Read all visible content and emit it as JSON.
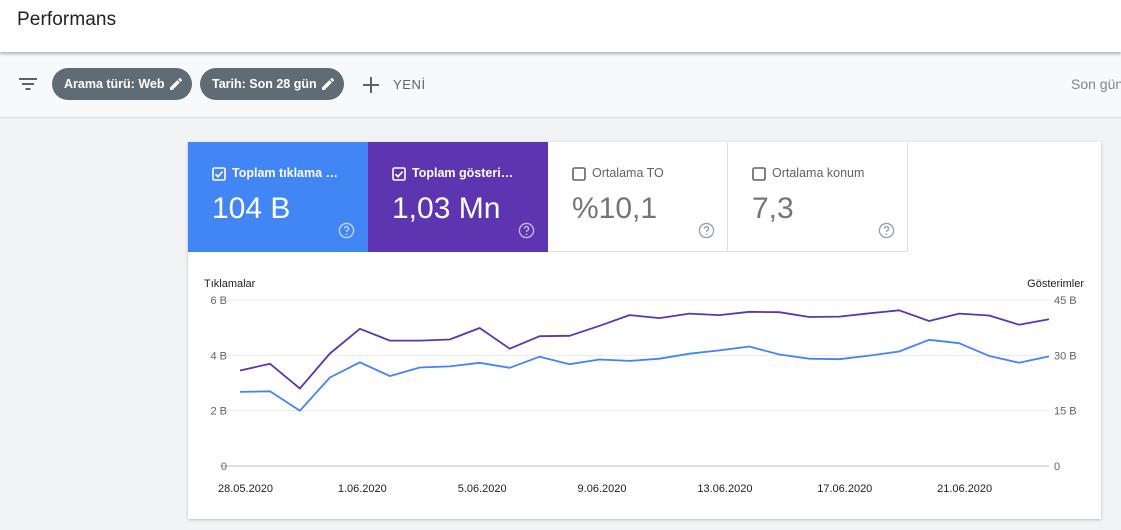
{
  "header": {
    "title": "Performans"
  },
  "filters": {
    "chips": [
      {
        "label": "Arama türü: Web"
      },
      {
        "label": "Tarih: Son 28 gün"
      }
    ],
    "new_label": "YENİ",
    "right_text": "Son gün"
  },
  "metrics": [
    {
      "label": "Toplam tıklama sayısı",
      "value": "104 B",
      "checked": true,
      "color": "#4285f4"
    },
    {
      "label": "Toplam gösterim sayısı",
      "value": "1,03 Mn",
      "checked": true,
      "color": "#5e35b1"
    },
    {
      "label": "Ortalama TO",
      "value": "%10,1",
      "checked": false
    },
    {
      "label": "Ortalama konum",
      "value": "7,3",
      "checked": false
    }
  ],
  "chart_data": {
    "type": "line",
    "y_left_label": "Tıklamalar",
    "y_right_label": "Gösterimler",
    "y_left_ticks": [
      "0",
      "2 B",
      "4 B",
      "6 B"
    ],
    "y_right_ticks": [
      "0",
      "15 B",
      "30 B",
      "45 B"
    ],
    "y_left_lim": [
      0,
      6000
    ],
    "y_right_lim": [
      0,
      45000
    ],
    "x_tick_labels": [
      {
        "index": 0,
        "label": "28.05.2020"
      },
      {
        "index": 4,
        "label": "1.06.2020"
      },
      {
        "index": 8,
        "label": "5.06.2020"
      },
      {
        "index": 12,
        "label": "9.06.2020"
      },
      {
        "index": 16,
        "label": "13.06.2020"
      },
      {
        "index": 20,
        "label": "17.06.2020"
      },
      {
        "index": 24,
        "label": "21.06.2020"
      }
    ],
    "series": [
      {
        "name": "Tıklamalar",
        "axis": "left",
        "color": "#4285f4",
        "values": [
          2680,
          2700,
          2000,
          3200,
          3750,
          3250,
          3560,
          3600,
          3730,
          3550,
          3950,
          3680,
          3850,
          3800,
          3880,
          4060,
          4180,
          4320,
          4030,
          3880,
          3860,
          3990,
          4140,
          4560,
          4440,
          3980,
          3730,
          3960
        ]
      },
      {
        "name": "Gösterimler",
        "axis": "right",
        "color": "#5e35b1",
        "values": [
          25900,
          27700,
          21000,
          30500,
          37200,
          34000,
          34000,
          34300,
          37400,
          31800,
          35200,
          35300,
          38000,
          40900,
          40100,
          41300,
          40900,
          41800,
          41700,
          40400,
          40500,
          41400,
          42200,
          39300,
          41300,
          40800,
          38300,
          39800
        ]
      }
    ]
  }
}
